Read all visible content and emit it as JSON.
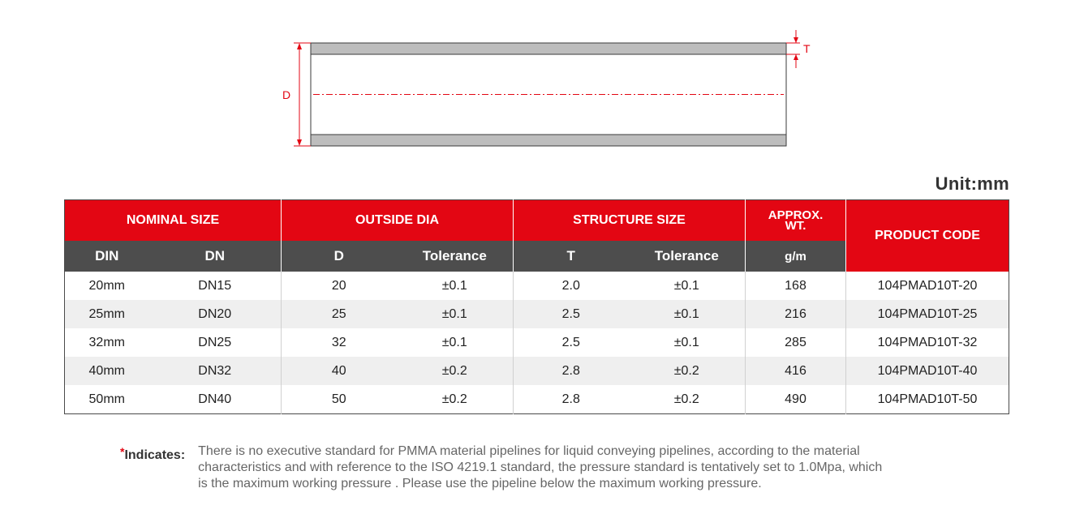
{
  "diagram": {
    "label_d": "D",
    "label_t": "T"
  },
  "unit": "Unit:mm",
  "table": {
    "groups": {
      "nominal": "NOMINAL SIZE",
      "outside": "OUTSIDE DIA",
      "structure": "STRUCTURE SIZE",
      "approx_line1": "APPROX.",
      "approx_line2": "WT.",
      "code": "PRODUCT CODE"
    },
    "subheaders": {
      "din": "DIN",
      "dn": "DN",
      "d": "D",
      "tol1": "Tolerance",
      "t": "T",
      "tol2": "Tolerance",
      "unit": "g/m",
      "code": ""
    },
    "rows": [
      [
        "20mm",
        "DN15",
        "20",
        "±0.1",
        "2.0",
        "±0.1",
        "168",
        "104PMAD10T-20"
      ],
      [
        "25mm",
        "DN20",
        "25",
        "±0.1",
        "2.5",
        "±0.1",
        "216",
        "104PMAD10T-25"
      ],
      [
        "32mm",
        "DN25",
        "32",
        "±0.1",
        "2.5",
        "±0.1",
        "285",
        "104PMAD10T-32"
      ],
      [
        "40mm",
        "DN32",
        "40",
        "±0.2",
        "2.8",
        "±0.2",
        "416",
        "104PMAD10T-40"
      ],
      [
        "50mm",
        "DN40",
        "50",
        "±0.2",
        "2.8",
        "±0.2",
        "490",
        "104PMAD10T-50"
      ]
    ]
  },
  "note": {
    "star": "*",
    "label": "Indicates:",
    "lines": [
      "There is no executive standard for PMMA material pipelines for liquid conveying pipelines, according to the material",
      "characteristics and with reference to the ISO 4219.1 standard, the pressure standard is tentatively set to 1.0Mpa, which",
      "is the maximum working pressure . Please use the pipeline below the maximum working pressure."
    ]
  },
  "colors": {
    "accent": "#e30613",
    "header_gray": "#4d4d4d",
    "pipe_wall": "#bdbdbd"
  }
}
